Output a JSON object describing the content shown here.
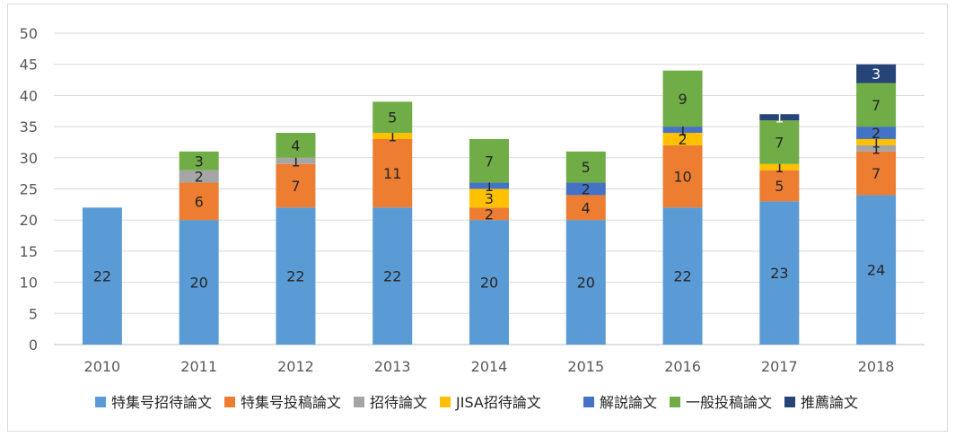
{
  "chart_data": {
    "type": "bar",
    "stacked": true,
    "categories": [
      "2010",
      "2011",
      "2012",
      "2013",
      "2014",
      "2015",
      "2016",
      "2017",
      "2018"
    ],
    "ylim": [
      0,
      50
    ],
    "yticks": [
      0,
      5,
      10,
      15,
      20,
      25,
      30,
      35,
      40,
      45,
      50
    ],
    "grid": true,
    "legend": "bottom",
    "title": "",
    "xlabel": "",
    "ylabel": "",
    "series": [
      {
        "name": "特集号招待論文",
        "color": "#5b9bd5",
        "values": [
          22,
          20,
          22,
          22,
          20,
          20,
          22,
          23,
          24
        ]
      },
      {
        "name": "特集号投稿論文",
        "color": "#ed7d31",
        "values": [
          0,
          6,
          7,
          11,
          2,
          4,
          10,
          5,
          7
        ]
      },
      {
        "name": "招待論文",
        "color": "#a5a5a5",
        "values": [
          0,
          2,
          1,
          0,
          0,
          0,
          0,
          0,
          1
        ]
      },
      {
        "name": "JISA招待論文",
        "color": "#ffc000",
        "values": [
          0,
          0,
          0,
          1,
          3,
          0,
          2,
          1,
          1
        ]
      },
      {
        "name": "解説論文",
        "color": "#4472c4",
        "values": [
          0,
          0,
          0,
          0,
          1,
          2,
          1,
          0,
          2
        ]
      },
      {
        "name": "一般投稿論文",
        "color": "#70ad47",
        "values": [
          0,
          3,
          4,
          5,
          7,
          5,
          9,
          7,
          7
        ]
      },
      {
        "name": "推薦論文",
        "color": "#264478",
        "values": [
          0,
          0,
          0,
          0,
          0,
          0,
          0,
          1,
          3
        ]
      }
    ]
  }
}
